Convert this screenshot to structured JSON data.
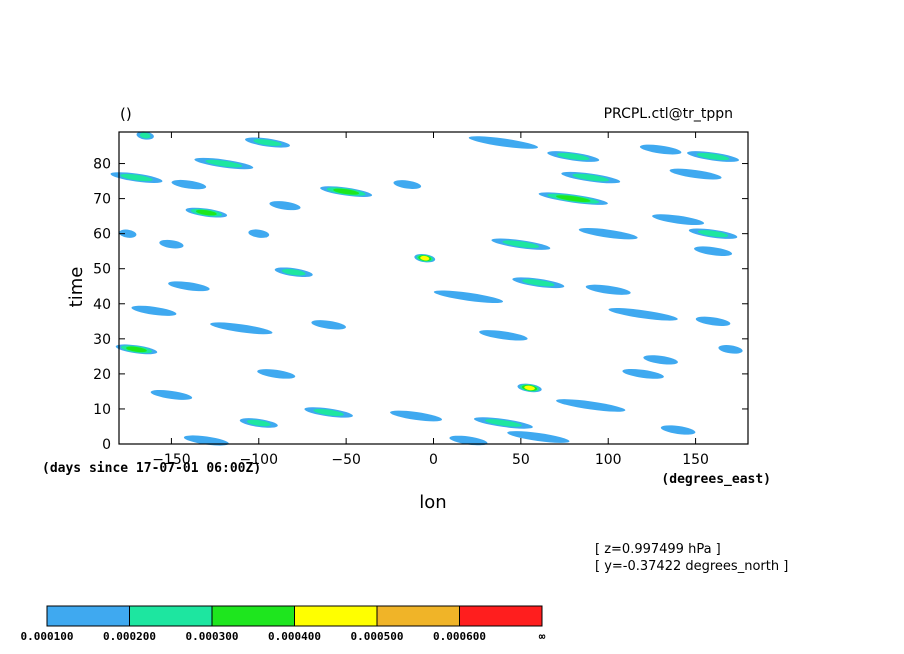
{
  "chart_data": {
    "type": "heatmap",
    "title_left": "()",
    "title_right": "PRCPL.ctl@tr_tppn",
    "xlabel": "lon",
    "ylabel": "time",
    "x_unit_label": "(degrees_east)",
    "y_unit_label": "(days since 17-07-01 06:00Z)",
    "xlim": [
      -180,
      180
    ],
    "ylim": [
      0,
      89
    ],
    "x_ticks": [
      -150,
      -100,
      -50,
      0,
      50,
      100,
      150
    ],
    "y_ticks": [
      0,
      10,
      20,
      30,
      40,
      50,
      60,
      70,
      80
    ],
    "info_lines": [
      "[ z=0.997499 hPa ]",
      "[ y=-0.37422 degrees_north ]"
    ],
    "colorbar": {
      "colors": [
        "#3fa9f0",
        "#1de6a0",
        "#1ee61e",
        "#ffff00",
        "#f0b428",
        "#ff1e1e"
      ],
      "labels": [
        "0.000100",
        "0.000200",
        "0.000300",
        "0.000400",
        "0.000500",
        "0.000600",
        "∞"
      ]
    },
    "streaks": [
      {
        "lon": -165,
        "t": 88,
        "len": 10,
        "level": 2
      },
      {
        "lon": -95,
        "t": 86,
        "len": 26,
        "level": 2
      },
      {
        "lon": -120,
        "t": 80,
        "len": 34,
        "level": 2
      },
      {
        "lon": -170,
        "t": 76,
        "len": 30,
        "level": 2
      },
      {
        "lon": -140,
        "t": 74,
        "len": 20,
        "level": 1
      },
      {
        "lon": -50,
        "t": 72,
        "len": 30,
        "level": 3
      },
      {
        "lon": -15,
        "t": 74,
        "len": 16,
        "level": 1
      },
      {
        "lon": -130,
        "t": 66,
        "len": 24,
        "level": 3
      },
      {
        "lon": -85,
        "t": 68,
        "len": 18,
        "level": 1
      },
      {
        "lon": -175,
        "t": 60,
        "len": 10,
        "level": 1
      },
      {
        "lon": -150,
        "t": 57,
        "len": 14,
        "level": 1
      },
      {
        "lon": -100,
        "t": 60,
        "len": 12,
        "level": 1
      },
      {
        "lon": -5,
        "t": 53,
        "len": 12,
        "level": 4
      },
      {
        "lon": -80,
        "t": 49,
        "len": 22,
        "level": 2
      },
      {
        "lon": -140,
        "t": 45,
        "len": 24,
        "level": 1
      },
      {
        "lon": -160,
        "t": 38,
        "len": 26,
        "level": 1
      },
      {
        "lon": -110,
        "t": 33,
        "len": 36,
        "level": 1
      },
      {
        "lon": -170,
        "t": 27,
        "len": 24,
        "level": 3
      },
      {
        "lon": -60,
        "t": 34,
        "len": 20,
        "level": 1
      },
      {
        "lon": -90,
        "t": 20,
        "len": 22,
        "level": 1
      },
      {
        "lon": -150,
        "t": 14,
        "len": 24,
        "level": 1
      },
      {
        "lon": -100,
        "t": 6,
        "len": 22,
        "level": 2
      },
      {
        "lon": -60,
        "t": 9,
        "len": 28,
        "level": 2
      },
      {
        "lon": -10,
        "t": 8,
        "len": 30,
        "level": 1
      },
      {
        "lon": -130,
        "t": 1,
        "len": 26,
        "level": 1
      },
      {
        "lon": 40,
        "t": 86,
        "len": 40,
        "level": 1
      },
      {
        "lon": 80,
        "t": 82,
        "len": 30,
        "level": 2
      },
      {
        "lon": 130,
        "t": 84,
        "len": 24,
        "level": 1
      },
      {
        "lon": 160,
        "t": 82,
        "len": 30,
        "level": 2
      },
      {
        "lon": 90,
        "t": 76,
        "len": 34,
        "level": 2
      },
      {
        "lon": 150,
        "t": 77,
        "len": 30,
        "level": 1
      },
      {
        "lon": 80,
        "t": 70,
        "len": 40,
        "level": 3
      },
      {
        "lon": 140,
        "t": 64,
        "len": 30,
        "level": 1
      },
      {
        "lon": 160,
        "t": 60,
        "len": 28,
        "level": 2
      },
      {
        "lon": 100,
        "t": 60,
        "len": 34,
        "level": 1
      },
      {
        "lon": 50,
        "t": 57,
        "len": 34,
        "level": 2
      },
      {
        "lon": 160,
        "t": 55,
        "len": 22,
        "level": 1
      },
      {
        "lon": 60,
        "t": 46,
        "len": 30,
        "level": 2
      },
      {
        "lon": 100,
        "t": 44,
        "len": 26,
        "level": 1
      },
      {
        "lon": 20,
        "t": 42,
        "len": 40,
        "level": 1
      },
      {
        "lon": 120,
        "t": 37,
        "len": 40,
        "level": 1
      },
      {
        "lon": 160,
        "t": 35,
        "len": 20,
        "level": 1
      },
      {
        "lon": 40,
        "t": 31,
        "len": 28,
        "level": 1
      },
      {
        "lon": 170,
        "t": 27,
        "len": 14,
        "level": 1
      },
      {
        "lon": 120,
        "t": 20,
        "len": 24,
        "level": 1
      },
      {
        "lon": 130,
        "t": 24,
        "len": 20,
        "level": 1
      },
      {
        "lon": 55,
        "t": 16,
        "len": 14,
        "level": 4
      },
      {
        "lon": 90,
        "t": 11,
        "len": 40,
        "level": 1
      },
      {
        "lon": 40,
        "t": 6,
        "len": 34,
        "level": 2
      },
      {
        "lon": 60,
        "t": 2,
        "len": 36,
        "level": 1
      },
      {
        "lon": 140,
        "t": 4,
        "len": 20,
        "level": 1
      },
      {
        "lon": 20,
        "t": 1,
        "len": 22,
        "level": 1
      }
    ]
  }
}
